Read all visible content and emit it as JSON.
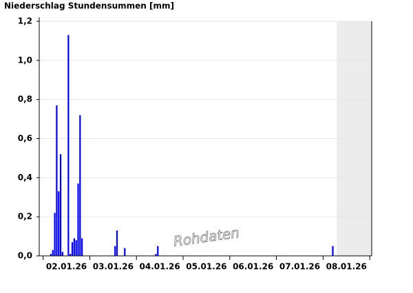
{
  "chart_data": {
    "type": "bar",
    "title": "Niederschlag Stundensummen [mm]",
    "annotation": "Rohdaten",
    "x": [
      4,
      5,
      6,
      7,
      8,
      9,
      10,
      13,
      14,
      15,
      16,
      17,
      18,
      19,
      20,
      37,
      38,
      42,
      58,
      59,
      149
    ],
    "values": [
      0.01,
      0.03,
      0.22,
      0.77,
      0.33,
      0.52,
      0.02,
      1.13,
      0.01,
      0.07,
      0.09,
      0.08,
      0.37,
      0.72,
      0.09,
      0.05,
      0.13,
      0.04,
      0.01,
      0.05,
      0.05
    ],
    "color": "#0000ff",
    "xlim": [
      -2,
      169
    ],
    "xticks": [
      {
        "value": 12,
        "label": "02.01.26"
      },
      {
        "value": 36,
        "label": "03.01.26"
      },
      {
        "value": 60,
        "label": "04.01.26"
      },
      {
        "value": 84,
        "label": "05.01.26"
      },
      {
        "value": 108,
        "label": "06.01.26"
      },
      {
        "value": 132,
        "label": "07.01.26"
      },
      {
        "value": 156,
        "label": "08.01.26"
      }
    ],
    "ylim": [
      0,
      1.2
    ],
    "yticks": [
      {
        "value": 0,
        "label": "0,0"
      },
      {
        "value": 0.2,
        "label": "0,2"
      },
      {
        "value": 0.4,
        "label": "0,4"
      },
      {
        "value": 0.6,
        "label": "0,6"
      },
      {
        "value": 0.8,
        "label": "0,8"
      },
      {
        "value": 1.0,
        "label": "1,0"
      },
      {
        "value": 1.2,
        "label": "1,2"
      }
    ],
    "grid": true,
    "shaded_from": 151
  }
}
